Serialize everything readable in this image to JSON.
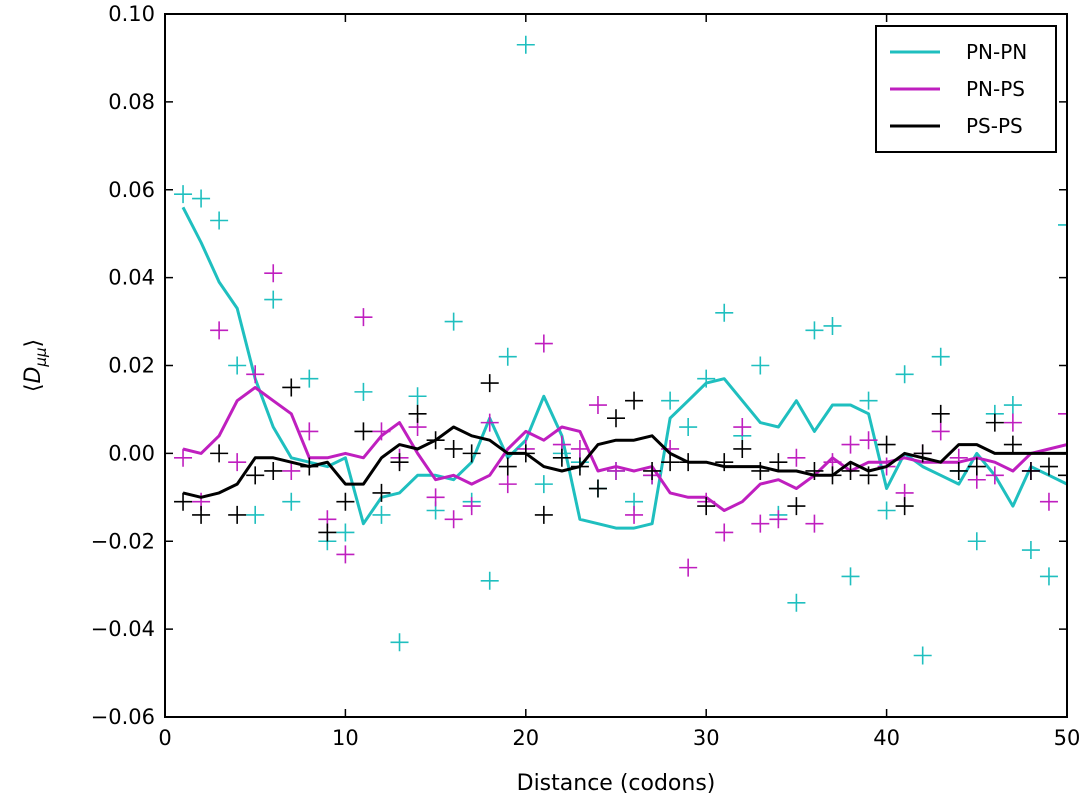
{
  "chart_data": {
    "type": "line",
    "title": "",
    "xlabel": "Distance (codons)",
    "ylabel": "⟨D_μμ⟩",
    "xlim": [
      0,
      50
    ],
    "ylim": [
      -0.06,
      0.1
    ],
    "xticks": [
      "0",
      "10",
      "20",
      "30",
      "40",
      "50"
    ],
    "yticks": [
      "0.10",
      "0.08",
      "0.06",
      "0.04",
      "0.02",
      "0.00",
      "−0.02",
      "−0.04",
      "−0.06"
    ],
    "grid": false,
    "legend_position": "top-right",
    "markers": "plus",
    "series": [
      {
        "name": "PN-PN",
        "color": "#1fbfbf",
        "x": [
          1,
          2,
          3,
          4,
          5,
          6,
          7,
          8,
          9,
          10,
          11,
          12,
          13,
          14,
          15,
          16,
          17,
          18,
          19,
          20,
          21,
          22,
          23,
          24,
          25,
          26,
          27,
          28,
          29,
          30,
          31,
          32,
          33,
          34,
          35,
          36,
          37,
          38,
          39,
          40,
          41,
          42,
          43,
          44,
          45,
          46,
          47,
          48,
          49,
          50
        ],
        "smoothed": [
          0.056,
          0.048,
          0.039,
          0.033,
          0.017,
          0.006,
          -0.001,
          -0.002,
          -0.003,
          -0.001,
          -0.016,
          -0.01,
          -0.009,
          -0.005,
          -0.005,
          -0.006,
          -0.002,
          0.008,
          -0.001,
          0.003,
          0.013,
          0.004,
          -0.015,
          -0.016,
          -0.017,
          -0.017,
          -0.016,
          0.008,
          0.012,
          0.016,
          0.017,
          0.012,
          0.007,
          0.006,
          0.012,
          0.005,
          0.011,
          0.011,
          0.009,
          -0.008,
          0.0,
          -0.003,
          -0.005,
          -0.007,
          0.0,
          -0.005,
          -0.012,
          -0.003,
          -0.005,
          -0.007
        ],
        "raw": [
          [
            1,
            0.059
          ],
          [
            2,
            0.058
          ],
          [
            3,
            0.053
          ],
          [
            4,
            0.02
          ],
          [
            5,
            -0.014
          ],
          [
            6,
            0.035
          ],
          [
            7,
            -0.011
          ],
          [
            8,
            0.017
          ],
          [
            9,
            -0.02
          ],
          [
            10,
            -0.018
          ],
          [
            11,
            0.014
          ],
          [
            12,
            -0.014
          ],
          [
            13,
            -0.043
          ],
          [
            14,
            0.013
          ],
          [
            15,
            -0.013
          ],
          [
            16,
            0.03
          ],
          [
            17,
            -0.011
          ],
          [
            18,
            -0.029
          ],
          [
            19,
            0.022
          ],
          [
            20,
            0.093
          ],
          [
            21,
            -0.007
          ],
          [
            22,
            0.0
          ],
          [
            23,
            -0.002
          ],
          [
            24,
            -0.008
          ],
          [
            25,
            -0.004
          ],
          [
            26,
            -0.011
          ],
          [
            27,
            -0.005
          ],
          [
            28,
            0.012
          ],
          [
            29,
            0.006
          ],
          [
            30,
            0.017
          ],
          [
            31,
            0.032
          ],
          [
            32,
            0.004
          ],
          [
            33,
            0.02
          ],
          [
            34,
            -0.014
          ],
          [
            35,
            -0.034
          ],
          [
            36,
            0.028
          ],
          [
            37,
            0.029
          ],
          [
            38,
            -0.028
          ],
          [
            39,
            0.012
          ],
          [
            40,
            -0.013
          ],
          [
            41,
            0.018
          ],
          [
            42,
            -0.046
          ],
          [
            43,
            0.022
          ],
          [
            44,
            -0.004
          ],
          [
            45,
            -0.02
          ],
          [
            46,
            0.009
          ],
          [
            47,
            0.011
          ],
          [
            48,
            -0.022
          ],
          [
            49,
            -0.028
          ],
          [
            50,
            0.052
          ]
        ]
      },
      {
        "name": "PN-PS",
        "color": "#bf1fbf",
        "x": [
          1,
          2,
          3,
          4,
          5,
          6,
          7,
          8,
          9,
          10,
          11,
          12,
          13,
          14,
          15,
          16,
          17,
          18,
          19,
          20,
          21,
          22,
          23,
          24,
          25,
          26,
          27,
          28,
          29,
          30,
          31,
          32,
          33,
          34,
          35,
          36,
          37,
          38,
          39,
          40,
          41,
          42,
          43,
          44,
          45,
          46,
          47,
          48,
          49,
          50
        ],
        "smoothed": [
          0.001,
          0.0,
          0.004,
          0.012,
          0.015,
          0.012,
          0.009,
          -0.001,
          -0.001,
          0.0,
          -0.001,
          0.004,
          0.007,
          0.0,
          -0.006,
          -0.005,
          -0.007,
          -0.005,
          0.001,
          0.005,
          0.003,
          0.006,
          0.005,
          -0.004,
          -0.003,
          -0.004,
          -0.003,
          -0.009,
          -0.01,
          -0.01,
          -0.013,
          -0.011,
          -0.007,
          -0.006,
          -0.008,
          -0.005,
          -0.001,
          -0.004,
          -0.002,
          -0.002,
          -0.001,
          -0.002,
          -0.002,
          -0.002,
          -0.001,
          -0.002,
          -0.004,
          0.0,
          0.001,
          0.002
        ],
        "raw": [
          [
            1,
            -0.001
          ],
          [
            2,
            -0.011
          ],
          [
            3,
            0.028
          ],
          [
            4,
            -0.002
          ],
          [
            5,
            0.018
          ],
          [
            6,
            0.041
          ],
          [
            7,
            -0.004
          ],
          [
            8,
            0.005
          ],
          [
            9,
            -0.015
          ],
          [
            10,
            -0.023
          ],
          [
            11,
            0.031
          ],
          [
            12,
            0.005
          ],
          [
            13,
            -0.001
          ],
          [
            14,
            0.006
          ],
          [
            15,
            -0.01
          ],
          [
            16,
            -0.015
          ],
          [
            17,
            -0.012
          ],
          [
            18,
            0.007
          ],
          [
            19,
            -0.007
          ],
          [
            20,
            0.001
          ],
          [
            21,
            0.025
          ],
          [
            22,
            0.002
          ],
          [
            23,
            0.001
          ],
          [
            24,
            0.011
          ],
          [
            25,
            -0.004
          ],
          [
            26,
            -0.014
          ],
          [
            27,
            -0.005
          ],
          [
            28,
            0.001
          ],
          [
            29,
            -0.026
          ],
          [
            30,
            -0.011
          ],
          [
            31,
            -0.018
          ],
          [
            32,
            0.006
          ],
          [
            33,
            -0.016
          ],
          [
            34,
            -0.015
          ],
          [
            35,
            -0.001
          ],
          [
            36,
            -0.016
          ],
          [
            37,
            -0.002
          ],
          [
            38,
            0.002
          ],
          [
            39,
            0.003
          ],
          [
            40,
            -0.003
          ],
          [
            41,
            -0.009
          ],
          [
            42,
            0.0
          ],
          [
            43,
            0.005
          ],
          [
            44,
            -0.001
          ],
          [
            45,
            -0.006
          ],
          [
            46,
            -0.005
          ],
          [
            47,
            0.007
          ],
          [
            48,
            -0.004
          ],
          [
            49,
            -0.011
          ],
          [
            50,
            0.009
          ]
        ]
      },
      {
        "name": "PS-PS",
        "color": "#000000",
        "x": [
          1,
          2,
          3,
          4,
          5,
          6,
          7,
          8,
          9,
          10,
          11,
          12,
          13,
          14,
          15,
          16,
          17,
          18,
          19,
          20,
          21,
          22,
          23,
          24,
          25,
          26,
          27,
          28,
          29,
          30,
          31,
          32,
          33,
          34,
          35,
          36,
          37,
          38,
          39,
          40,
          41,
          42,
          43,
          44,
          45,
          46,
          47,
          48,
          49,
          50
        ],
        "smoothed": [
          -0.009,
          -0.01,
          -0.009,
          -0.007,
          -0.001,
          -0.001,
          -0.002,
          -0.003,
          -0.002,
          -0.007,
          -0.007,
          -0.001,
          0.002,
          0.001,
          0.003,
          0.006,
          0.004,
          0.003,
          0.0,
          0.0,
          -0.003,
          -0.004,
          -0.003,
          0.002,
          0.003,
          0.003,
          0.004,
          0.0,
          -0.002,
          -0.002,
          -0.003,
          -0.003,
          -0.003,
          -0.004,
          -0.004,
          -0.005,
          -0.005,
          -0.002,
          -0.004,
          -0.003,
          0.0,
          -0.001,
          -0.002,
          0.002,
          0.002,
          0.0,
          0.0,
          0.0,
          0.0,
          0.0
        ],
        "raw": [
          [
            1,
            -0.011
          ],
          [
            2,
            -0.014
          ],
          [
            3,
            0.0
          ],
          [
            4,
            -0.014
          ],
          [
            5,
            -0.005
          ],
          [
            6,
            -0.004
          ],
          [
            7,
            0.015
          ],
          [
            8,
            -0.003
          ],
          [
            9,
            -0.018
          ],
          [
            10,
            -0.011
          ],
          [
            11,
            0.005
          ],
          [
            12,
            -0.009
          ],
          [
            13,
            -0.002
          ],
          [
            14,
            0.009
          ],
          [
            15,
            0.003
          ],
          [
            16,
            0.001
          ],
          [
            17,
            0.0
          ],
          [
            18,
            0.016
          ],
          [
            19,
            -0.003
          ],
          [
            20,
            0.0
          ],
          [
            21,
            -0.014
          ],
          [
            22,
            -0.001
          ],
          [
            23,
            -0.003
          ],
          [
            24,
            -0.008
          ],
          [
            25,
            0.008
          ],
          [
            26,
            0.012
          ],
          [
            27,
            -0.004
          ],
          [
            28,
            -0.002
          ],
          [
            29,
            -0.002
          ],
          [
            30,
            -0.012
          ],
          [
            31,
            -0.002
          ],
          [
            32,
            0.001
          ],
          [
            33,
            -0.004
          ],
          [
            34,
            -0.002
          ],
          [
            35,
            -0.012
          ],
          [
            36,
            -0.004
          ],
          [
            37,
            -0.005
          ],
          [
            38,
            -0.004
          ],
          [
            39,
            -0.005
          ],
          [
            40,
            0.002
          ],
          [
            41,
            -0.012
          ],
          [
            42,
            0.0
          ],
          [
            43,
            0.009
          ],
          [
            44,
            -0.004
          ],
          [
            45,
            -0.003
          ],
          [
            46,
            0.007
          ],
          [
            47,
            0.002
          ],
          [
            48,
            -0.004
          ],
          [
            49,
            -0.003
          ],
          [
            50,
            -0.005
          ]
        ]
      }
    ]
  }
}
